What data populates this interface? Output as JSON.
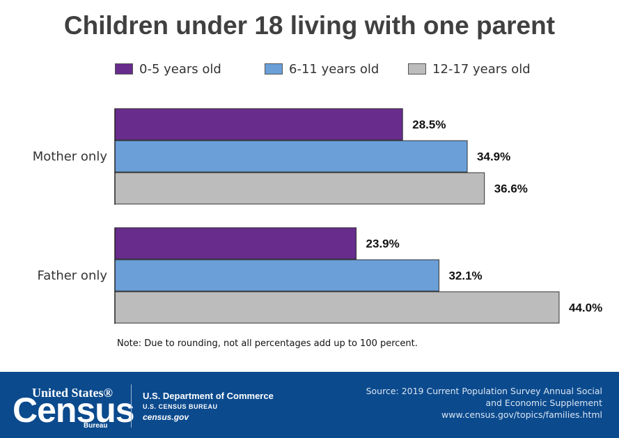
{
  "chart_data": {
    "type": "bar",
    "orientation": "horizontal",
    "title": "Children under 18 living with one parent",
    "categories": [
      "Mother only",
      "Father only"
    ],
    "series": [
      {
        "name": "0-5 years old",
        "values": [
          28.5,
          23.9
        ],
        "color": "#672c8c"
      },
      {
        "name": "6-11 years old",
        "values": [
          34.9,
          32.1
        ],
        "color": "#6a9fd8"
      },
      {
        "name": "12-17 years old",
        "values": [
          36.6,
          44.0
        ],
        "color": "#bcbcbc"
      }
    ],
    "value_labels": [
      [
        "28.5%",
        "23.9%"
      ],
      [
        "34.9%",
        "32.1%"
      ],
      [
        "36.6%",
        "44.0%"
      ]
    ],
    "xlim": [
      0,
      50
    ],
    "legend_position": "top",
    "grid": false
  },
  "note": "Note: Due to rounding, not all percentages add up to 100 percent.",
  "footer": {
    "logo_top": "United States®",
    "logo_main": "Census",
    "logo_bottom": "Bureau",
    "agency": "U.S. Department of Commerce",
    "bureau": "U.S. CENSUS BUREAU",
    "website": "census.gov",
    "source_lines": [
      "Source: 2019 Current Population Survey Annual Social",
      "and Economic Supplement",
      "www.census.gov/topics/families.html"
    ],
    "background_color": "#0b4a8d"
  }
}
